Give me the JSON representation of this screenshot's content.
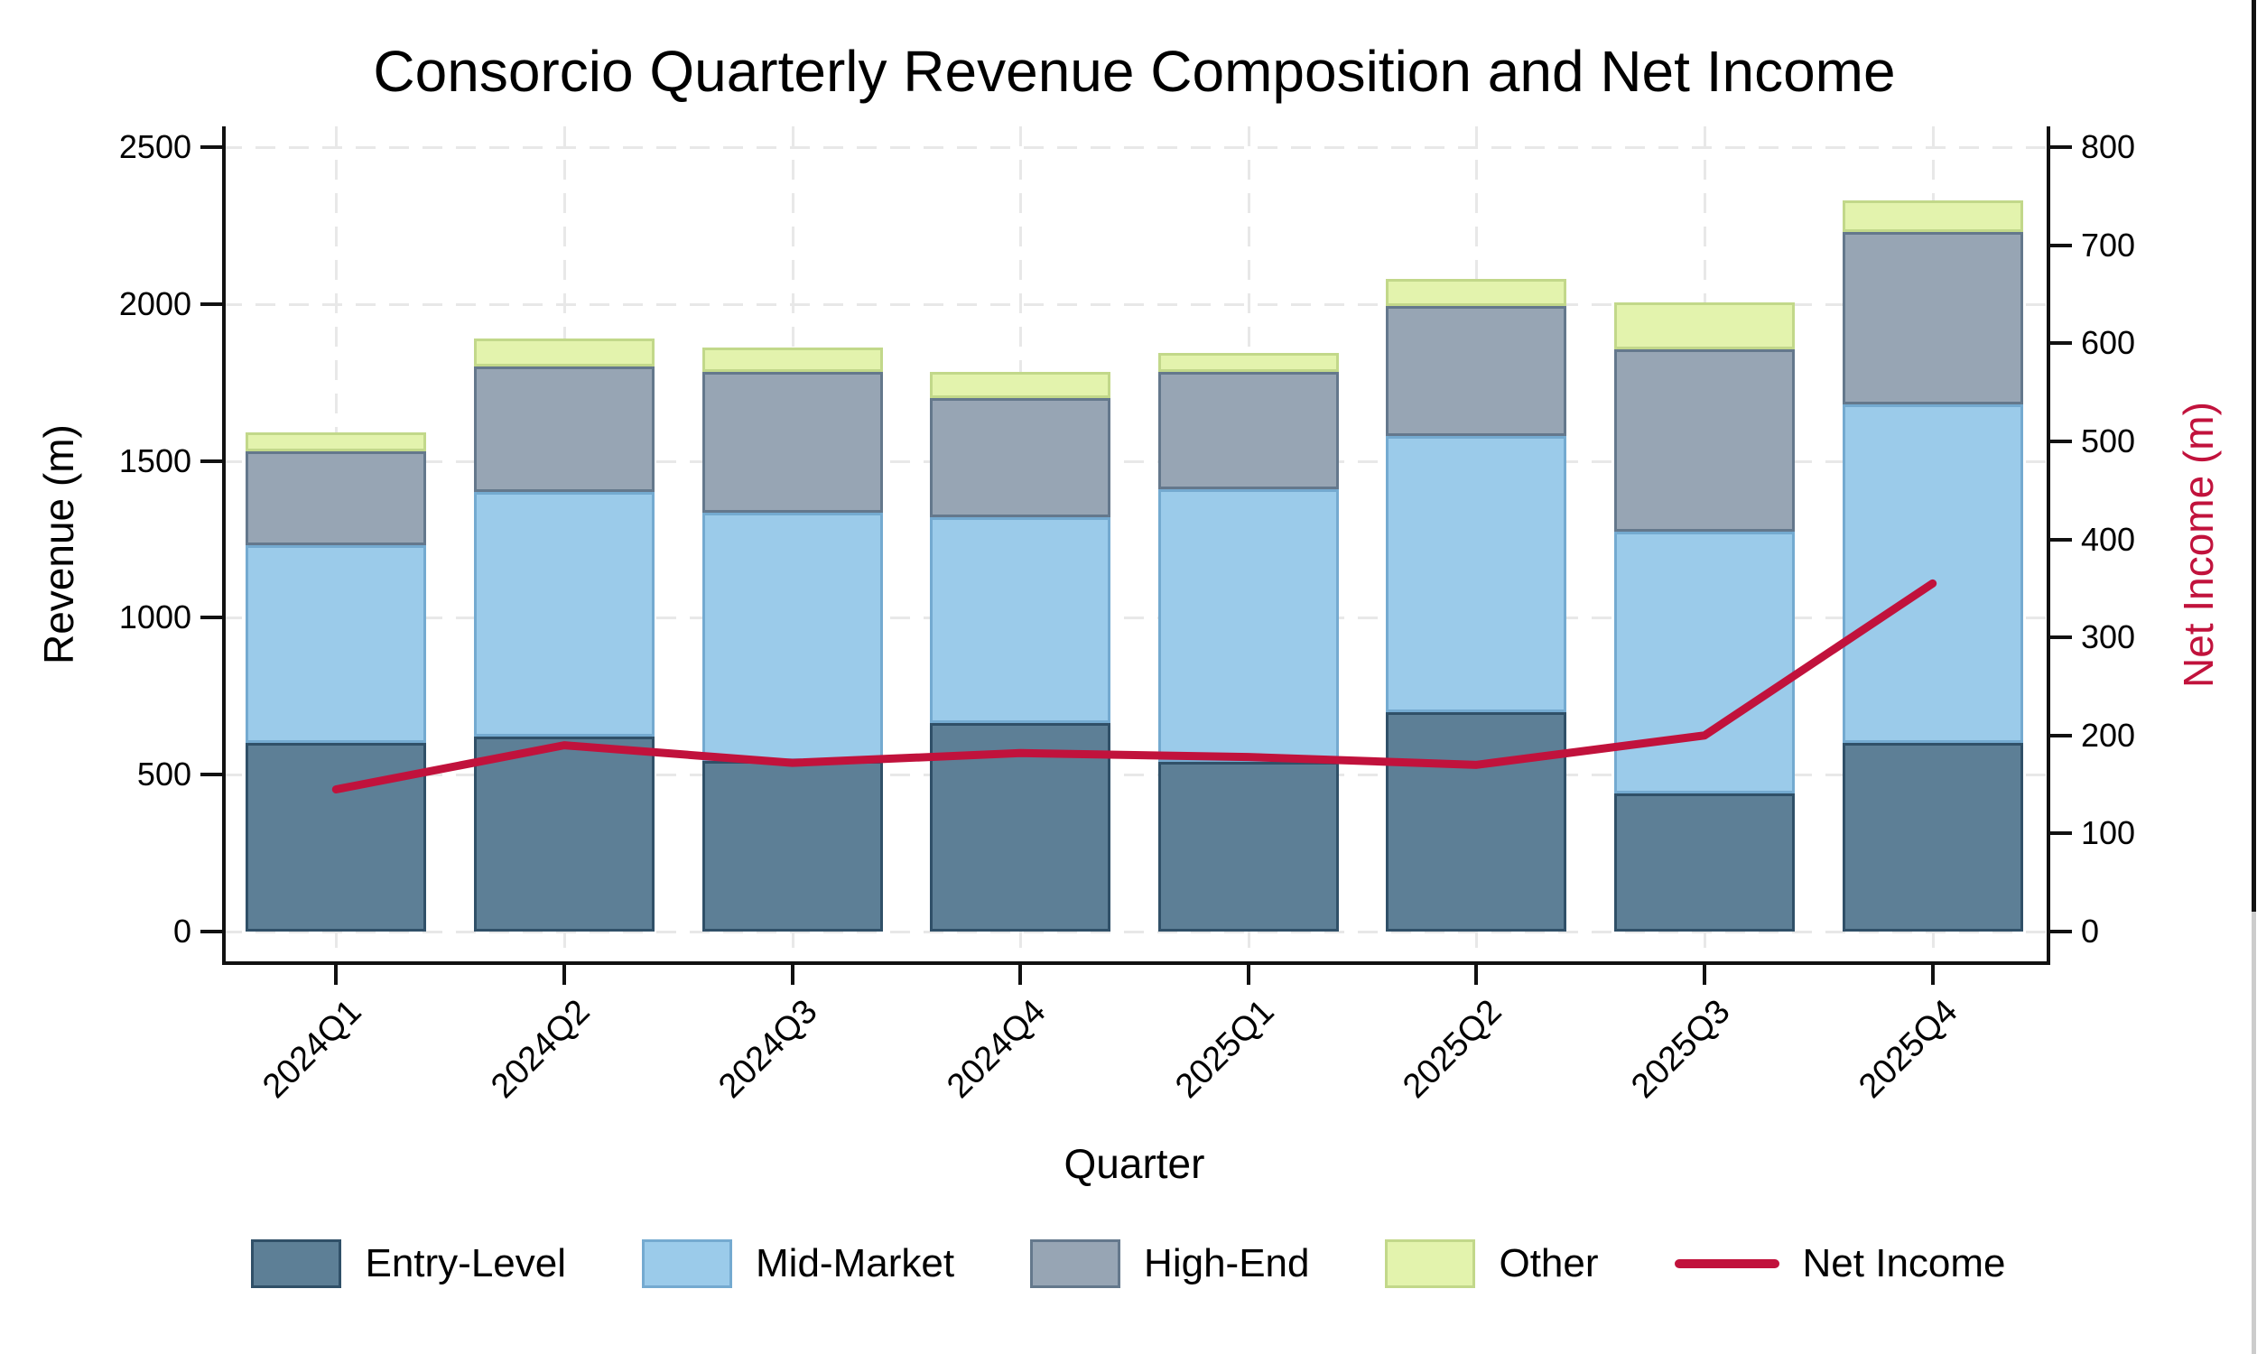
{
  "chart_data": {
    "type": "bar",
    "subtype": "stacked-bar-with-line",
    "title": "Consorcio Quarterly Revenue Composition and Net Income",
    "xlabel": "Quarter",
    "ylabel_left": "Revenue (m)",
    "ylabel_right": "Net Income (m)",
    "categories": [
      "2024Q1",
      "2024Q2",
      "2024Q3",
      "2024Q4",
      "2025Q1",
      "2025Q2",
      "2025Q3",
      "2025Q4"
    ],
    "series": [
      {
        "name": "Entry-Level",
        "values": [
          600,
          620,
          545,
          665,
          540,
          700,
          440,
          600
        ],
        "fill": "#5d7f96",
        "edge": "#305068"
      },
      {
        "name": "Mid-Market",
        "values": [
          630,
          780,
          790,
          655,
          870,
          880,
          835,
          1080
        ],
        "fill": "#9bcbea",
        "edge": "#74aad0"
      },
      {
        "name": "High-End",
        "values": [
          300,
          400,
          450,
          380,
          375,
          415,
          580,
          550
        ],
        "fill": "#97a5b4",
        "edge": "#64788c"
      },
      {
        "name": "Other",
        "values": [
          60,
          90,
          75,
          85,
          60,
          85,
          150,
          100
        ],
        "fill": "#e3f3ad",
        "edge": "#c2d88a"
      }
    ],
    "line_series": {
      "name": "Net Income",
      "values": [
        145,
        190,
        172,
        182,
        178,
        170,
        200,
        355
      ],
      "color": "#c1123c",
      "axis": "right"
    },
    "y_left_ticks": [
      0,
      500,
      1000,
      1500,
      2000,
      2500
    ],
    "y_right_ticks": [
      0,
      100,
      200,
      300,
      400,
      500,
      600,
      700,
      800
    ],
    "y_left_max": 2500,
    "y_right_max": 800,
    "grid": true,
    "grid_style": "dashed",
    "legend_position": "bottom",
    "x_tick_rotation": 45,
    "colors": {
      "right_axis_label": "#c1123c",
      "spine": "#111111",
      "grid": "#e8e8e8"
    }
  },
  "edge_artifact": {
    "top_color": "#111111",
    "bottom_color": "#cccccc"
  }
}
